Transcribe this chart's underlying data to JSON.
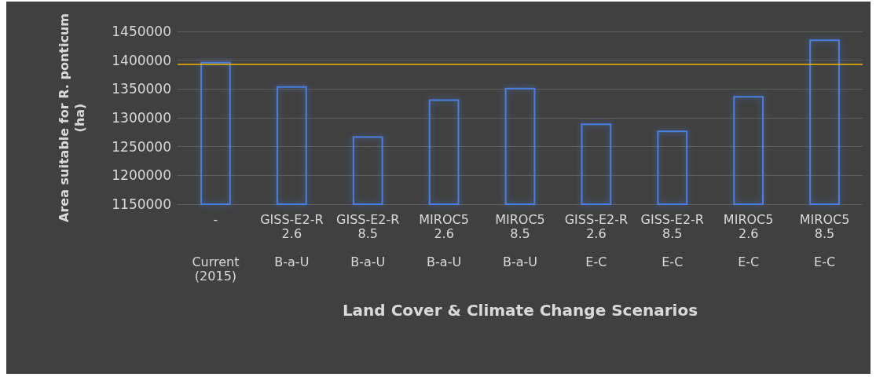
{
  "chart_data": {
    "type": "bar",
    "xlabel": "Land Cover & Climate Change Scenarios",
    "ylabel": "Area suitable for R. ponticum\n(ha)",
    "categories": [
      "-\n\n\nCurrent\n(2015)",
      "GISS-E2-R\n2.6\n\nB-a-U",
      "GISS-E2-R\n8.5\n\nB-a-U",
      "MIROC5\n2.6\n\nB-a-U",
      "MIROC5\n8.5\n\nB-a-U",
      "GISS-E2-R\n2.6\n\nE-C",
      "GISS-E2-R\n8.5\n\nE-C",
      "MIROC5\n2.6\n\nE-C",
      "MIROC5\n8.5\n\nE-C"
    ],
    "values": [
      1397000,
      1355000,
      1268000,
      1332000,
      1352000,
      1290000,
      1278000,
      1338000,
      1436000
    ],
    "color": "#4a7fe0",
    "ylim": [
      1150000,
      1450000
    ],
    "yticks": [
      1150000,
      1200000,
      1250000,
      1300000,
      1350000,
      1400000,
      1450000
    ],
    "grid": "y",
    "ref_lines": [
      {
        "axis": "y",
        "value": 1393000,
        "color": "#f0b400"
      }
    ]
  }
}
